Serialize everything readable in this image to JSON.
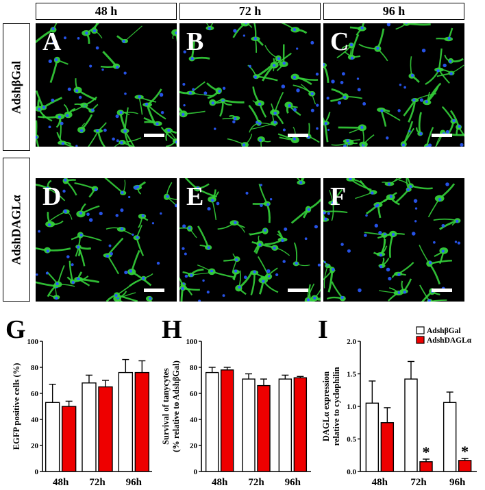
{
  "columns": [
    "48 h",
    "72 h",
    "96 h"
  ],
  "rows": [
    "AdshβGal",
    "AdshDAGLα"
  ],
  "panel_letters": [
    "A",
    "B",
    "C",
    "D",
    "E",
    "F"
  ],
  "chart_letters": [
    "G",
    "H",
    "I"
  ],
  "colors": {
    "cell_green": "#34d03a",
    "nucleus_blue": "#2a5bff",
    "series_control": "#ffffff",
    "series_treatment": "#ee0000"
  },
  "chart_data": [
    {
      "type": "bar",
      "ylabel": "EGFP positive cells (%)",
      "categories": [
        "48h",
        "72h",
        "96h"
      ],
      "ylim": [
        0,
        100
      ],
      "yticks": [
        "0",
        "20",
        "40",
        "60",
        "80",
        "100"
      ],
      "yticks_values": [
        0,
        20,
        40,
        60,
        80,
        100
      ],
      "series": [
        {
          "values": [
            53,
            68,
            76
          ],
          "errors": [
            14,
            6,
            10
          ]
        },
        {
          "values": [
            50,
            65,
            76
          ],
          "errors": [
            4,
            5,
            9
          ]
        }
      ]
    },
    {
      "type": "bar",
      "ylabel": "Survival of tanycytes",
      "ylabel2": "(% relative to AdshβGal)",
      "categories": [
        "48h",
        "72h",
        "96h"
      ],
      "ylim": [
        0,
        100
      ],
      "yticks": [
        "0",
        "20",
        "40",
        "60",
        "80",
        "100"
      ],
      "yticks_values": [
        0,
        20,
        40,
        60,
        80,
        100
      ],
      "series": [
        {
          "values": [
            76,
            71,
            71
          ],
          "errors": [
            4,
            4,
            3
          ]
        },
        {
          "values": [
            78,
            66,
            72
          ],
          "errors": [
            2,
            5,
            1
          ]
        }
      ]
    },
    {
      "type": "bar",
      "ylabel": "DAGLα expression",
      "ylabel2": "relative to cyclophilin",
      "categories": [
        "48h",
        "72h",
        "96h"
      ],
      "ylim": [
        0,
        2.0
      ],
      "yticks": [
        "0.0",
        "0.5",
        "1.0",
        "1.5",
        "2.0"
      ],
      "yticks_values": [
        0,
        0.5,
        1.0,
        1.5,
        2.0
      ],
      "legend": [
        "AdshβGal",
        "AdshDAGLα"
      ],
      "legend_position": "top-right",
      "series": [
        {
          "name": "AdshβGal",
          "values": [
            1.05,
            1.42,
            1.06
          ],
          "errors": [
            0.34,
            0.27,
            0.16
          ]
        },
        {
          "name": "AdshDAGLα",
          "values": [
            0.75,
            0.15,
            0.17
          ],
          "errors": [
            0.23,
            0.04,
            0.03
          ]
        }
      ],
      "annotations": [
        {
          "category": "72h",
          "series": "AdshDAGLα",
          "text": "*"
        },
        {
          "category": "96h",
          "series": "AdshDAGLα",
          "text": "*"
        }
      ]
    }
  ]
}
